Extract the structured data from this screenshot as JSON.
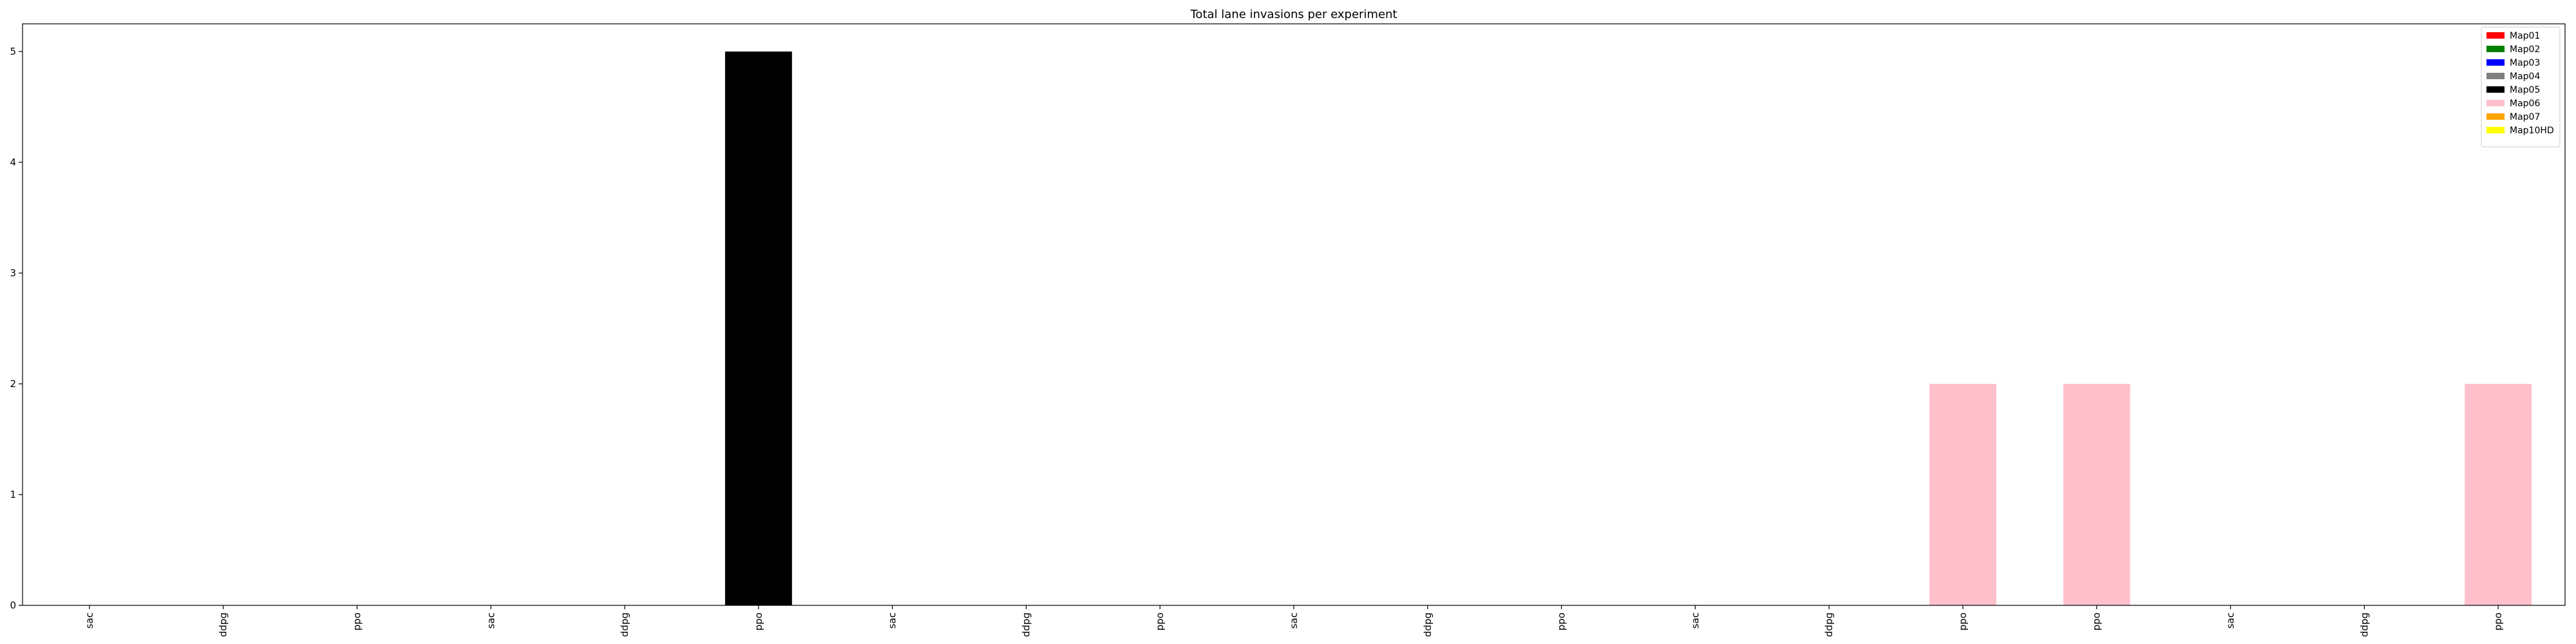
{
  "chart_data": {
    "type": "bar",
    "title": "Total lane invasions per experiment",
    "xlabel": "",
    "ylabel": "",
    "ylim": [
      0,
      5.25
    ],
    "yticks": [
      0,
      1,
      2,
      3,
      4,
      5
    ],
    "grid": false,
    "legend_position": "top-right",
    "categories": [
      "sac",
      "ddpg",
      "ppo",
      "sac",
      "ddpg",
      "ppo",
      "sac",
      "ddpg",
      "ppo",
      "sac",
      "ddpg",
      "ppo",
      "sac",
      "ddpg",
      "ppo",
      "ppo",
      "sac",
      "ddpg",
      "ppo"
    ],
    "values": [
      0,
      0,
      0,
      0,
      0,
      5,
      0,
      0,
      0,
      0,
      0,
      0,
      0,
      0,
      2,
      2,
      0,
      0,
      2
    ],
    "bar_maps": [
      "Map01",
      "Map01",
      "Map01",
      "Map02",
      "Map02",
      "Map05",
      "Map03",
      "Map03",
      "Map03",
      "Map04",
      "Map04",
      "Map04",
      "Map05",
      "Map05",
      "Map06",
      "Map06",
      "Map07",
      "Map07",
      "Map06"
    ],
    "legend": [
      {
        "name": "Map01",
        "color": "#ff0000"
      },
      {
        "name": "Map02",
        "color": "#008000"
      },
      {
        "name": "Map03",
        "color": "#0000ff"
      },
      {
        "name": "Map04",
        "color": "#808080"
      },
      {
        "name": "Map05",
        "color": "#000000"
      },
      {
        "name": "Map06",
        "color": "#ffc0cb"
      },
      {
        "name": "Map07",
        "color": "#ffa500"
      },
      {
        "name": "Map10HD",
        "color": "#ffff00"
      }
    ]
  }
}
